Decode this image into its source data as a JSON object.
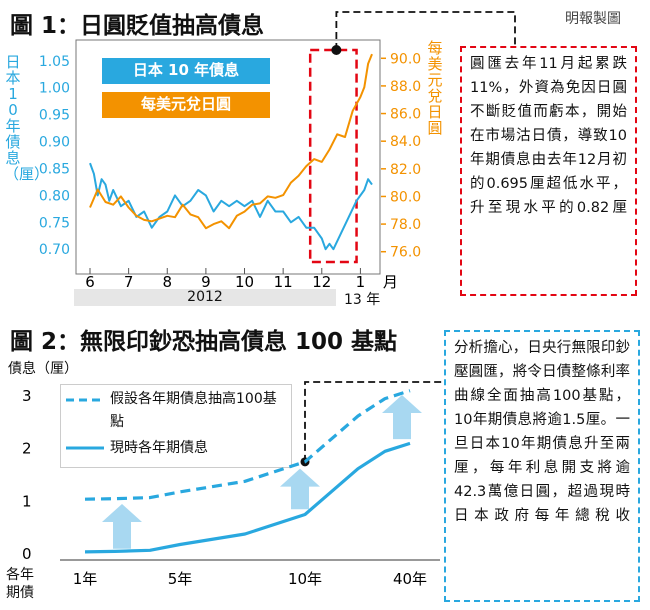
{
  "source_credit": "明報製圖",
  "figure1": {
    "title": "圖 1：日圓貶值抽高債息",
    "left_axis_label": "日本10年債息（厘）",
    "right_axis_label": "每美元兌日圓",
    "legend": [
      {
        "label": "日本 10 年債息",
        "color": "#29a8df"
      },
      {
        "label": "每美元兌日圓",
        "color": "#f39200"
      }
    ],
    "note": "圓匯去年11月起累跌11%，外資為免因日圓不斷貶值而虧本，開始在市場沽日債，導致10年期債息由去年12月初的0.695厘超低水平，升至現水平的0.82厘",
    "year_band_label": "2012",
    "year_13_label": "13 年",
    "month_unit": "月"
  },
  "figure2": {
    "title": "圖 2：無限印鈔恐抽高債息 100 基點",
    "y_axis_label": "債息（厘）",
    "x_axis_label": "各年期債",
    "legend": [
      {
        "label": "假設各年期債息抽高100基點",
        "style": "dashed",
        "color": "#29a8df"
      },
      {
        "label": "現時各年期債息",
        "style": "solid",
        "color": "#29a8df"
      }
    ],
    "note": "分析擔心，日央行無限印鈔壓圓匯，將令日債整條利率曲線全面抽高100基點，10年期債息將逾1.5厘。一旦日本10年期債息升至兩厘，每年利息開支將逾42.3萬億日圓，超過現時日本政府每年總稅收"
  },
  "chart_data": [
    {
      "type": "line",
      "title": "圖 1：日圓貶值抽高債息",
      "x_tick_labels": [
        "6",
        "7",
        "8",
        "9",
        "10",
        "11",
        "12",
        "1"
      ],
      "x_unit": "月",
      "y_left": {
        "label": "日本10年債息（厘）",
        "ticks": [
          0.7,
          0.75,
          0.8,
          0.85,
          0.9,
          0.95,
          1.0,
          1.05
        ],
        "range": [
          0.68,
          1.07
        ],
        "color": "#29a8df"
      },
      "y_right": {
        "label": "每美元兌日圓",
        "ticks": [
          76.0,
          78.0,
          80.0,
          82.0,
          84.0,
          86.0,
          88.0,
          90.0
        ],
        "range": [
          75.4,
          90.6
        ],
        "color": "#f39200"
      },
      "series": [
        {
          "name": "日本 10 年債息",
          "axis": "left",
          "color": "#29a8df",
          "x": [
            6.0,
            6.1,
            6.2,
            6.3,
            6.4,
            6.5,
            6.6,
            6.8,
            7.0,
            7.2,
            7.4,
            7.6,
            7.8,
            8.0,
            8.2,
            8.4,
            8.6,
            8.8,
            9.0,
            9.2,
            9.4,
            9.6,
            9.8,
            10.0,
            10.2,
            10.4,
            10.6,
            10.8,
            11.0,
            11.2,
            11.4,
            11.6,
            11.8,
            12.0,
            12.1,
            12.2,
            12.3,
            12.5,
            12.7,
            12.9,
            13.1,
            13.2,
            13.3
          ],
          "y": [
            0.86,
            0.84,
            0.8,
            0.83,
            0.82,
            0.79,
            0.81,
            0.78,
            0.79,
            0.76,
            0.77,
            0.74,
            0.76,
            0.77,
            0.8,
            0.78,
            0.79,
            0.81,
            0.8,
            0.77,
            0.79,
            0.78,
            0.79,
            0.78,
            0.79,
            0.76,
            0.79,
            0.77,
            0.77,
            0.75,
            0.76,
            0.74,
            0.74,
            0.72,
            0.7,
            0.71,
            0.7,
            0.73,
            0.76,
            0.79,
            0.81,
            0.83,
            0.82
          ]
        },
        {
          "name": "每美元兌日圓",
          "axis": "right",
          "color": "#f39200",
          "x": [
            6.0,
            6.2,
            6.4,
            6.6,
            6.8,
            7.0,
            7.2,
            7.4,
            7.6,
            7.8,
            8.0,
            8.2,
            8.4,
            8.6,
            8.8,
            9.0,
            9.2,
            9.4,
            9.6,
            9.8,
            10.0,
            10.2,
            10.4,
            10.6,
            10.8,
            11.0,
            11.2,
            11.4,
            11.6,
            11.8,
            12.0,
            12.2,
            12.4,
            12.6,
            12.8,
            13.0,
            13.1,
            13.2,
            13.3
          ],
          "y": [
            79.2,
            80.5,
            79.6,
            79.4,
            80.0,
            79.2,
            78.6,
            78.3,
            78.2,
            78.4,
            78.6,
            78.5,
            79.4,
            78.7,
            78.5,
            77.7,
            78.0,
            78.2,
            77.7,
            78.6,
            78.9,
            79.4,
            79.5,
            80.0,
            79.9,
            80.1,
            81.0,
            81.5,
            82.2,
            82.7,
            82.5,
            83.4,
            84.5,
            84.3,
            86.2,
            87.2,
            87.9,
            89.6,
            90.3
          ]
        }
      ],
      "highlight_region": {
        "x_from": 11.7,
        "x_to": 12.9
      },
      "x_group_label": "2012"
    },
    {
      "type": "line",
      "title": "圖 2：無限印鈔恐抽高債息 100 基點",
      "x_categories": [
        "1年",
        "5年",
        "10年",
        "40年"
      ],
      "x_label": "各年期債",
      "y_label": "債息（厘）",
      "y_ticks": [
        0,
        1,
        2,
        3
      ],
      "y_range": [
        0,
        3.1
      ],
      "series": [
        {
          "name": "現時各年期債息",
          "style": "solid",
          "color": "#29a8df",
          "x": [
            "1年",
            "2年",
            "3年",
            "5年",
            "7年",
            "10年",
            "20年",
            "30年",
            "40年"
          ],
          "y": [
            0.04,
            0.05,
            0.07,
            0.18,
            0.38,
            0.75,
            1.62,
            1.95,
            2.1
          ]
        },
        {
          "name": "假設各年期債息抽高100基點",
          "style": "dashed",
          "color": "#29a8df",
          "x": [
            "1年",
            "2年",
            "3年",
            "5年",
            "7年",
            "10年",
            "20年",
            "30年",
            "40年"
          ],
          "y": [
            1.04,
            1.05,
            1.07,
            1.18,
            1.38,
            1.75,
            2.62,
            2.95,
            3.1
          ]
        }
      ]
    }
  ]
}
